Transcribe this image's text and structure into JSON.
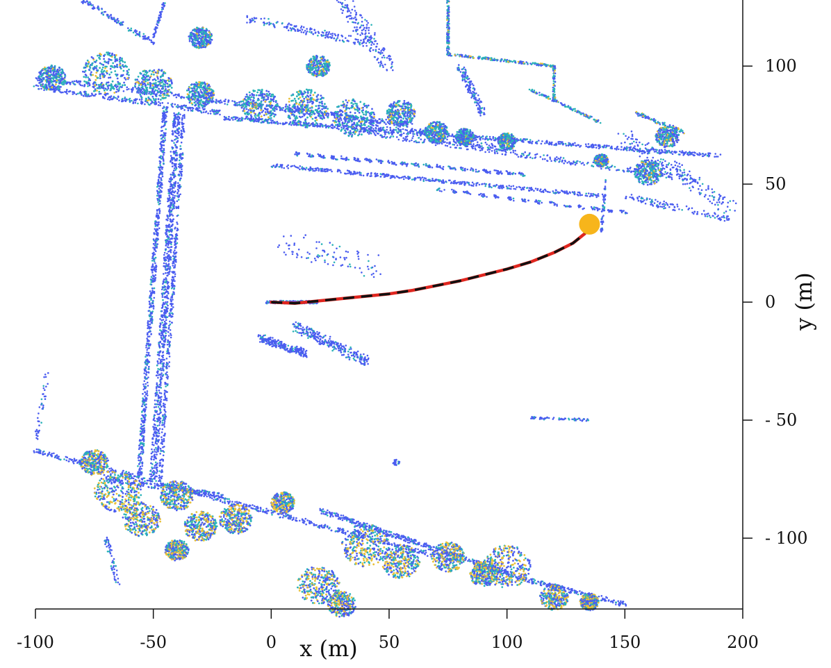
{
  "chart_data": {
    "type": "scatter",
    "title": "",
    "xlabel": "x (m)",
    "ylabel": "y (m)",
    "xlim": [
      -100,
      200
    ],
    "ylim": [
      -130,
      128
    ],
    "xticks": [
      -100,
      -50,
      0,
      50,
      100,
      150,
      200
    ],
    "yticks": [
      -100,
      -50,
      0,
      50,
      100
    ],
    "grid": false,
    "legend": "none",
    "colors": {
      "cloud_low": "#4a5cf0",
      "cloud_mid": "#2ab3b8",
      "cloud_high": "#e8c038",
      "trajectory_estimate": "#e0261f",
      "trajectory_reference": "#111111",
      "endpoint": "#f7b51b"
    },
    "trajectory": {
      "x": [
        0,
        10,
        20,
        30,
        40,
        50,
        60,
        70,
        80,
        90,
        100,
        110,
        120,
        128,
        133,
        135
      ],
      "y": [
        0,
        -0.5,
        0.5,
        1.5,
        2.5,
        3.5,
        5,
        7,
        9,
        11.5,
        14,
        17,
        21,
        25,
        29,
        33
      ]
    },
    "endpoint": {
      "x": 135,
      "y": 33
    },
    "point_cloud_regions": [
      {
        "kind": "building-edge",
        "x": [
          -90,
          190
        ],
        "y": [
          88,
          62
        ],
        "level": "low"
      },
      {
        "kind": "building-edge",
        "x": [
          40,
          180
        ],
        "y": [
          72,
          45
        ],
        "level": "low"
      },
      {
        "kind": "bridge",
        "x": [
          -40,
          -50
        ],
        "y": [
          80,
          -75
        ],
        "level": "low"
      },
      {
        "kind": "wall",
        "x": [
          -100,
          80
        ],
        "y": [
          -65,
          -110
        ],
        "level": "low"
      },
      {
        "kind": "wall",
        "x": [
          20,
          110
        ],
        "y": [
          -88,
          -118
        ],
        "level": "low"
      }
    ]
  }
}
